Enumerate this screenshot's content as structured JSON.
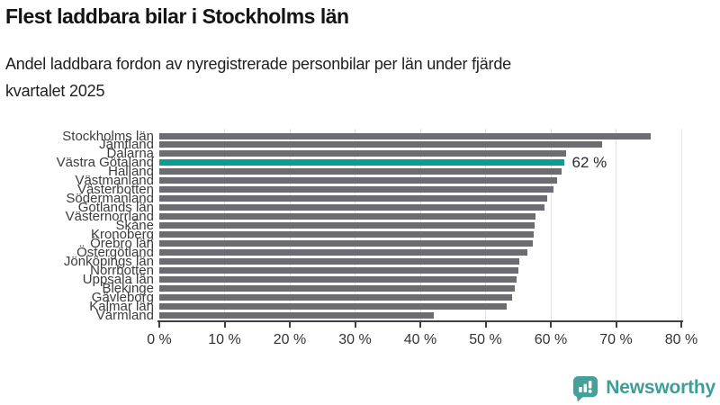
{
  "header": {
    "title": "Flest laddbara bilar i Stockholms län",
    "subtitle_lines": [
      "Andel laddbara fordon av nyregistrerade personbilar per län under fjärde",
      "kvartalet 2025"
    ]
  },
  "chart_data": {
    "type": "bar",
    "orientation": "horizontal",
    "title": "Flest laddbara bilar i Stockholms län",
    "subtitle": "Andel laddbara fordon av nyregistrerade personbilar per län under fjärde kvartalet 2025",
    "categories": [
      "Stockholms län",
      "Jämtland",
      "Dalarna",
      "Västra Götaland",
      "Halland",
      "Västmanland",
      "Västerbotten",
      "Södermanland",
      "Gotlands län",
      "Västernorrland",
      "Skåne",
      "Kronoberg",
      "Örebro län",
      "Östergötland",
      "Jönköpings län",
      "Norrbotten",
      "Uppsala län",
      "Blekinge",
      "Gävleborg",
      "Kalmar län",
      "Värmland"
    ],
    "values": [
      75.3,
      67.9,
      62.3,
      62.0,
      61.6,
      61.0,
      60.4,
      59.4,
      59.1,
      57.7,
      57.5,
      57.4,
      57.3,
      56.4,
      55.2,
      55.1,
      54.8,
      54.5,
      54.0,
      53.3,
      42.1
    ],
    "unit": "%",
    "xlim": [
      0,
      80
    ],
    "x_tick_values": [
      0,
      10,
      20,
      30,
      40,
      50,
      60,
      70,
      80
    ],
    "x_tick_labels": [
      "0 %",
      "10 %",
      "20 %",
      "30 %",
      "40 %",
      "50 %",
      "60 %",
      "70 %",
      "80 %"
    ],
    "grid": "vertical",
    "legend": "none",
    "xlabel": "",
    "ylabel": "",
    "highlight": {
      "index": 3,
      "category": "Västra Götaland",
      "label": "62 %"
    },
    "colors": {
      "bar": "#6c6c72",
      "highlight": "#0a9d96",
      "axis": "#3f3f3f",
      "grid": "#e4e4e4",
      "label_text": "#3c3c3c"
    }
  },
  "footer": {
    "brand": "Newsworthy",
    "brand_color": "#3f9d96",
    "logo_icon": "bar-chart-speech-bubble"
  }
}
